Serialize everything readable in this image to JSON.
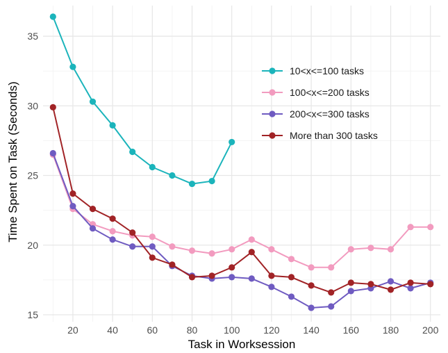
{
  "chart_data": {
    "type": "line",
    "title": "",
    "xlabel": "Task in Worksession",
    "ylabel": "Time Spent on Task (Seconds)",
    "xlim": [
      5,
      205
    ],
    "ylim": [
      14.5,
      37.2
    ],
    "x_ticks": [
      20,
      40,
      60,
      80,
      100,
      120,
      140,
      160,
      180,
      200
    ],
    "y_ticks": [
      15,
      20,
      25,
      30,
      35
    ],
    "grid": true,
    "legend_position": "top-right",
    "series": [
      {
        "name": "10<x<=100 tasks",
        "color": "#1bb4bb",
        "x": [
          10,
          20,
          30,
          40,
          50,
          60,
          70,
          80,
          90,
          100
        ],
        "y": [
          36.4,
          32.8,
          30.3,
          28.6,
          26.7,
          25.6,
          25.0,
          24.4,
          24.6,
          27.4
        ]
      },
      {
        "name": "100<x<=200 tasks",
        "color": "#f29bbf",
        "x": [
          10,
          20,
          30,
          40,
          50,
          60,
          70,
          80,
          90,
          100,
          110,
          120,
          130,
          140,
          150,
          160,
          170,
          180,
          190,
          200
        ],
        "y": [
          26.5,
          22.6,
          21.5,
          21.0,
          20.7,
          20.6,
          19.9,
          19.6,
          19.4,
          19.7,
          20.4,
          19.7,
          19.0,
          18.4,
          18.4,
          19.7,
          19.8,
          19.7,
          21.3,
          21.3
        ]
      },
      {
        "name": "200<x<=300 tasks",
        "color": "#6f5bc1",
        "x": [
          10,
          20,
          30,
          40,
          50,
          60,
          70,
          80,
          90,
          100,
          110,
          120,
          130,
          140,
          150,
          160,
          170,
          180,
          190,
          200
        ],
        "y": [
          26.6,
          22.8,
          21.2,
          20.4,
          19.9,
          19.9,
          18.5,
          17.8,
          17.6,
          17.7,
          17.6,
          17.0,
          16.3,
          15.5,
          15.6,
          16.7,
          16.9,
          17.4,
          16.9,
          17.3
        ]
      },
      {
        "name": "More than 300 tasks",
        "color": "#a12326",
        "x": [
          10,
          20,
          30,
          40,
          50,
          60,
          70,
          80,
          90,
          100,
          110,
          120,
          130,
          140,
          150,
          160,
          170,
          180,
          190,
          200
        ],
        "y": [
          29.9,
          23.7,
          22.6,
          21.9,
          20.9,
          19.1,
          18.6,
          17.7,
          17.8,
          18.4,
          19.5,
          17.8,
          17.7,
          17.1,
          16.6,
          17.3,
          17.2,
          16.8,
          17.3,
          17.2
        ]
      }
    ]
  }
}
